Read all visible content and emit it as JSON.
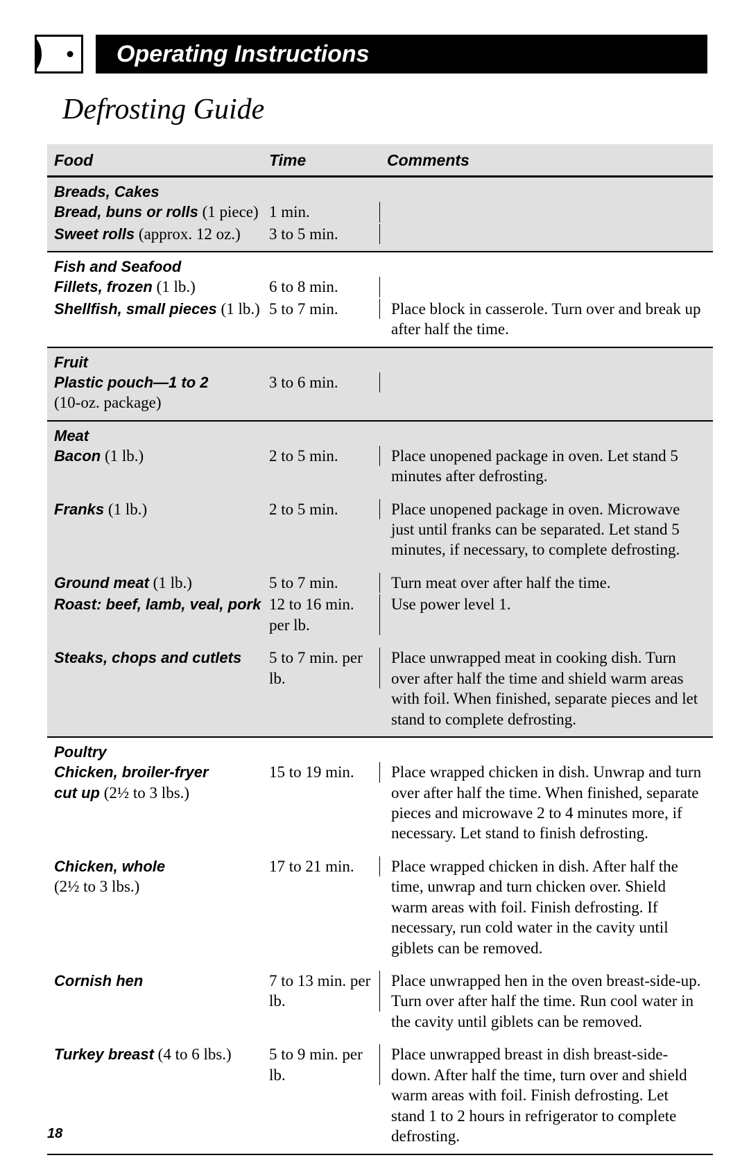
{
  "header": {
    "title": "Operating Instructions"
  },
  "section_title": "Defrosting Guide",
  "columns": {
    "food": "Food",
    "time": "Time",
    "comments": "Comments"
  },
  "groups": [
    {
      "shaded": true,
      "heading": "Breads, Cakes",
      "rows": [
        {
          "name": "Bread, buns or rolls",
          "qty": " (1 piece)",
          "time": "1 min.",
          "comments": ""
        },
        {
          "name": "Sweet rolls",
          "qty": " (approx. 12 oz.)",
          "time": "3 to 5 min.",
          "comments": ""
        }
      ]
    },
    {
      "shaded": false,
      "heading": "Fish and Seafood",
      "rows": [
        {
          "name": "Fillets, frozen",
          "qty": " (1 lb.)",
          "time": "6 to 8 min.",
          "comments": ""
        },
        {
          "name": "Shellfish, small pieces",
          "qty": " (1 lb.)",
          "time": "5 to 7 min.",
          "comments": "Place block in casserole. Turn over and break up after half the time."
        }
      ]
    },
    {
      "shaded": true,
      "heading": "Fruit",
      "rows": [
        {
          "name": "Plastic pouch—1 to 2",
          "qty": "",
          "sub": "(10-oz. package)",
          "time": "3 to 6 min.",
          "comments": ""
        }
      ]
    },
    {
      "shaded": true,
      "heading": "Meat",
      "rows": [
        {
          "name": "Bacon",
          "qty": " (1 lb.)",
          "time": "2 to 5 min.",
          "comments": "Place unopened package in oven. Let stand 5 minutes after defrosting."
        },
        {
          "spaced": true,
          "name": "Franks",
          "qty": " (1 lb.)",
          "time": "2 to 5 min.",
          "comments": "Place unopened package in oven. Microwave just until franks can be separated. Let stand 5 minutes, if necessary, to complete defrosting."
        },
        {
          "spaced": true,
          "name": "Ground meat",
          "qty": " (1 lb.)",
          "time": "5 to 7 min.",
          "comments": "Turn meat over after half the time."
        },
        {
          "name": "Roast: beef, lamb, veal, pork",
          "qty": "",
          "time": "12 to 16 min. per lb.",
          "comments": "Use power level 1."
        },
        {
          "spaced": true,
          "name": "Steaks, chops and cutlets",
          "qty": "",
          "time": "5 to 7 min. per lb.",
          "comments": "Place unwrapped meat in cooking dish. Turn over after half the time and shield warm areas with foil. When finished, separate pieces and let stand to complete defrosting."
        }
      ]
    },
    {
      "shaded": false,
      "heading": "Poultry",
      "rows": [
        {
          "name": "Chicken, broiler-fryer",
          "qty": "",
          "sub_bold": "cut up",
          "sub_qty": " (2½ to 3 lbs.)",
          "time": "15 to 19 min.",
          "comments": "Place wrapped chicken in dish. Unwrap and turn over after half the time. When finished, separate pieces and microwave 2 to 4 minutes more, if necessary. Let stand to finish defrosting."
        },
        {
          "spaced": true,
          "name": "Chicken, whole",
          "qty": "",
          "sub": "(2½ to 3 lbs.)",
          "time": "17 to 21 min.",
          "comments": "Place wrapped chicken in dish. After half the time, unwrap and turn chicken over. Shield warm areas with foil. Finish defrosting. If necessary, run cold water in the cavity until giblets can be removed."
        },
        {
          "spaced": true,
          "name": "Cornish hen",
          "qty": "",
          "time": "7 to 13 min. per lb.",
          "comments": "Place unwrapped hen in the oven breast-side-up. Turn over after half the time. Run cool water in the cavity until giblets can be removed."
        },
        {
          "spaced": true,
          "name": "Turkey breast",
          "qty": " (4 to 6 lbs.)",
          "time": "5 to 9 min. per lb.",
          "comments": "Place unwrapped breast in dish breast-side-down. After half the time, turn over and shield warm areas with foil. Finish defrosting. Let stand 1 to 2 hours in refrigerator to complete defrosting."
        }
      ]
    }
  ],
  "page_number": "18"
}
